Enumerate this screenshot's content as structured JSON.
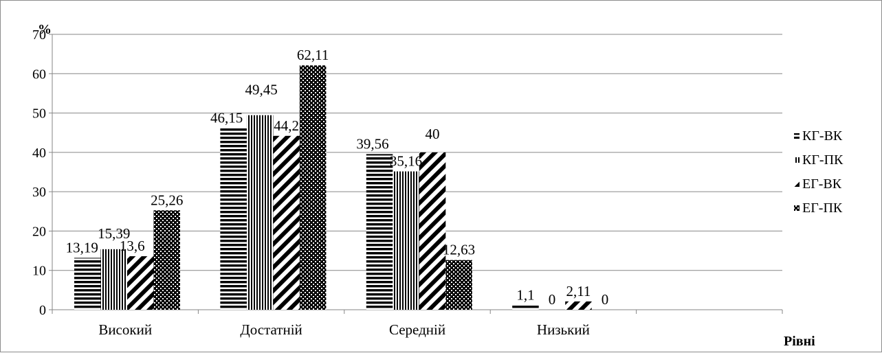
{
  "chart_data": {
    "type": "bar",
    "categories": [
      "Високий",
      "Достатній",
      "Середній",
      "Низький",
      ""
    ],
    "series": [
      {
        "name": "КГ-ВК",
        "pattern": "horizontal-stripes",
        "values": [
          13.19,
          46.15,
          39.56,
          1.1,
          null
        ],
        "labels": [
          "13,19",
          "46,15",
          "39,56",
          "1,1",
          ""
        ]
      },
      {
        "name": "КГ-ПК",
        "pattern": "vertical-stripes",
        "values": [
          15.39,
          49.45,
          35.16,
          0,
          null
        ],
        "labels": [
          "15,39",
          "49,45",
          "35,16",
          "0",
          ""
        ]
      },
      {
        "name": "ЕГ-ВК",
        "pattern": "diagonal-stripes",
        "values": [
          13.6,
          44.2,
          40,
          2.11,
          null
        ],
        "labels": [
          "13,6",
          "44,2",
          "40",
          "2,11",
          ""
        ]
      },
      {
        "name": "ЕГ-ПК",
        "pattern": "checker",
        "values": [
          25.26,
          62.11,
          12.63,
          0,
          null
        ],
        "labels": [
          "25,26",
          "62,11",
          "12,63",
          "0",
          ""
        ]
      }
    ],
    "ylim": [
      0,
      70
    ],
    "yticks": [
      0,
      10,
      20,
      30,
      40,
      50,
      60,
      70
    ],
    "ytick_labels": [
      "0",
      "10",
      "20",
      "30",
      "40",
      "50",
      "60",
      "70"
    ],
    "ylabel": "%",
    "xlabel": "Рівні",
    "title": "",
    "grid": true,
    "legend_position": "right",
    "colors": {
      "bar": "#000000",
      "grid": "#868686",
      "axis": "#868686",
      "frame": "#8c8c8c"
    }
  }
}
